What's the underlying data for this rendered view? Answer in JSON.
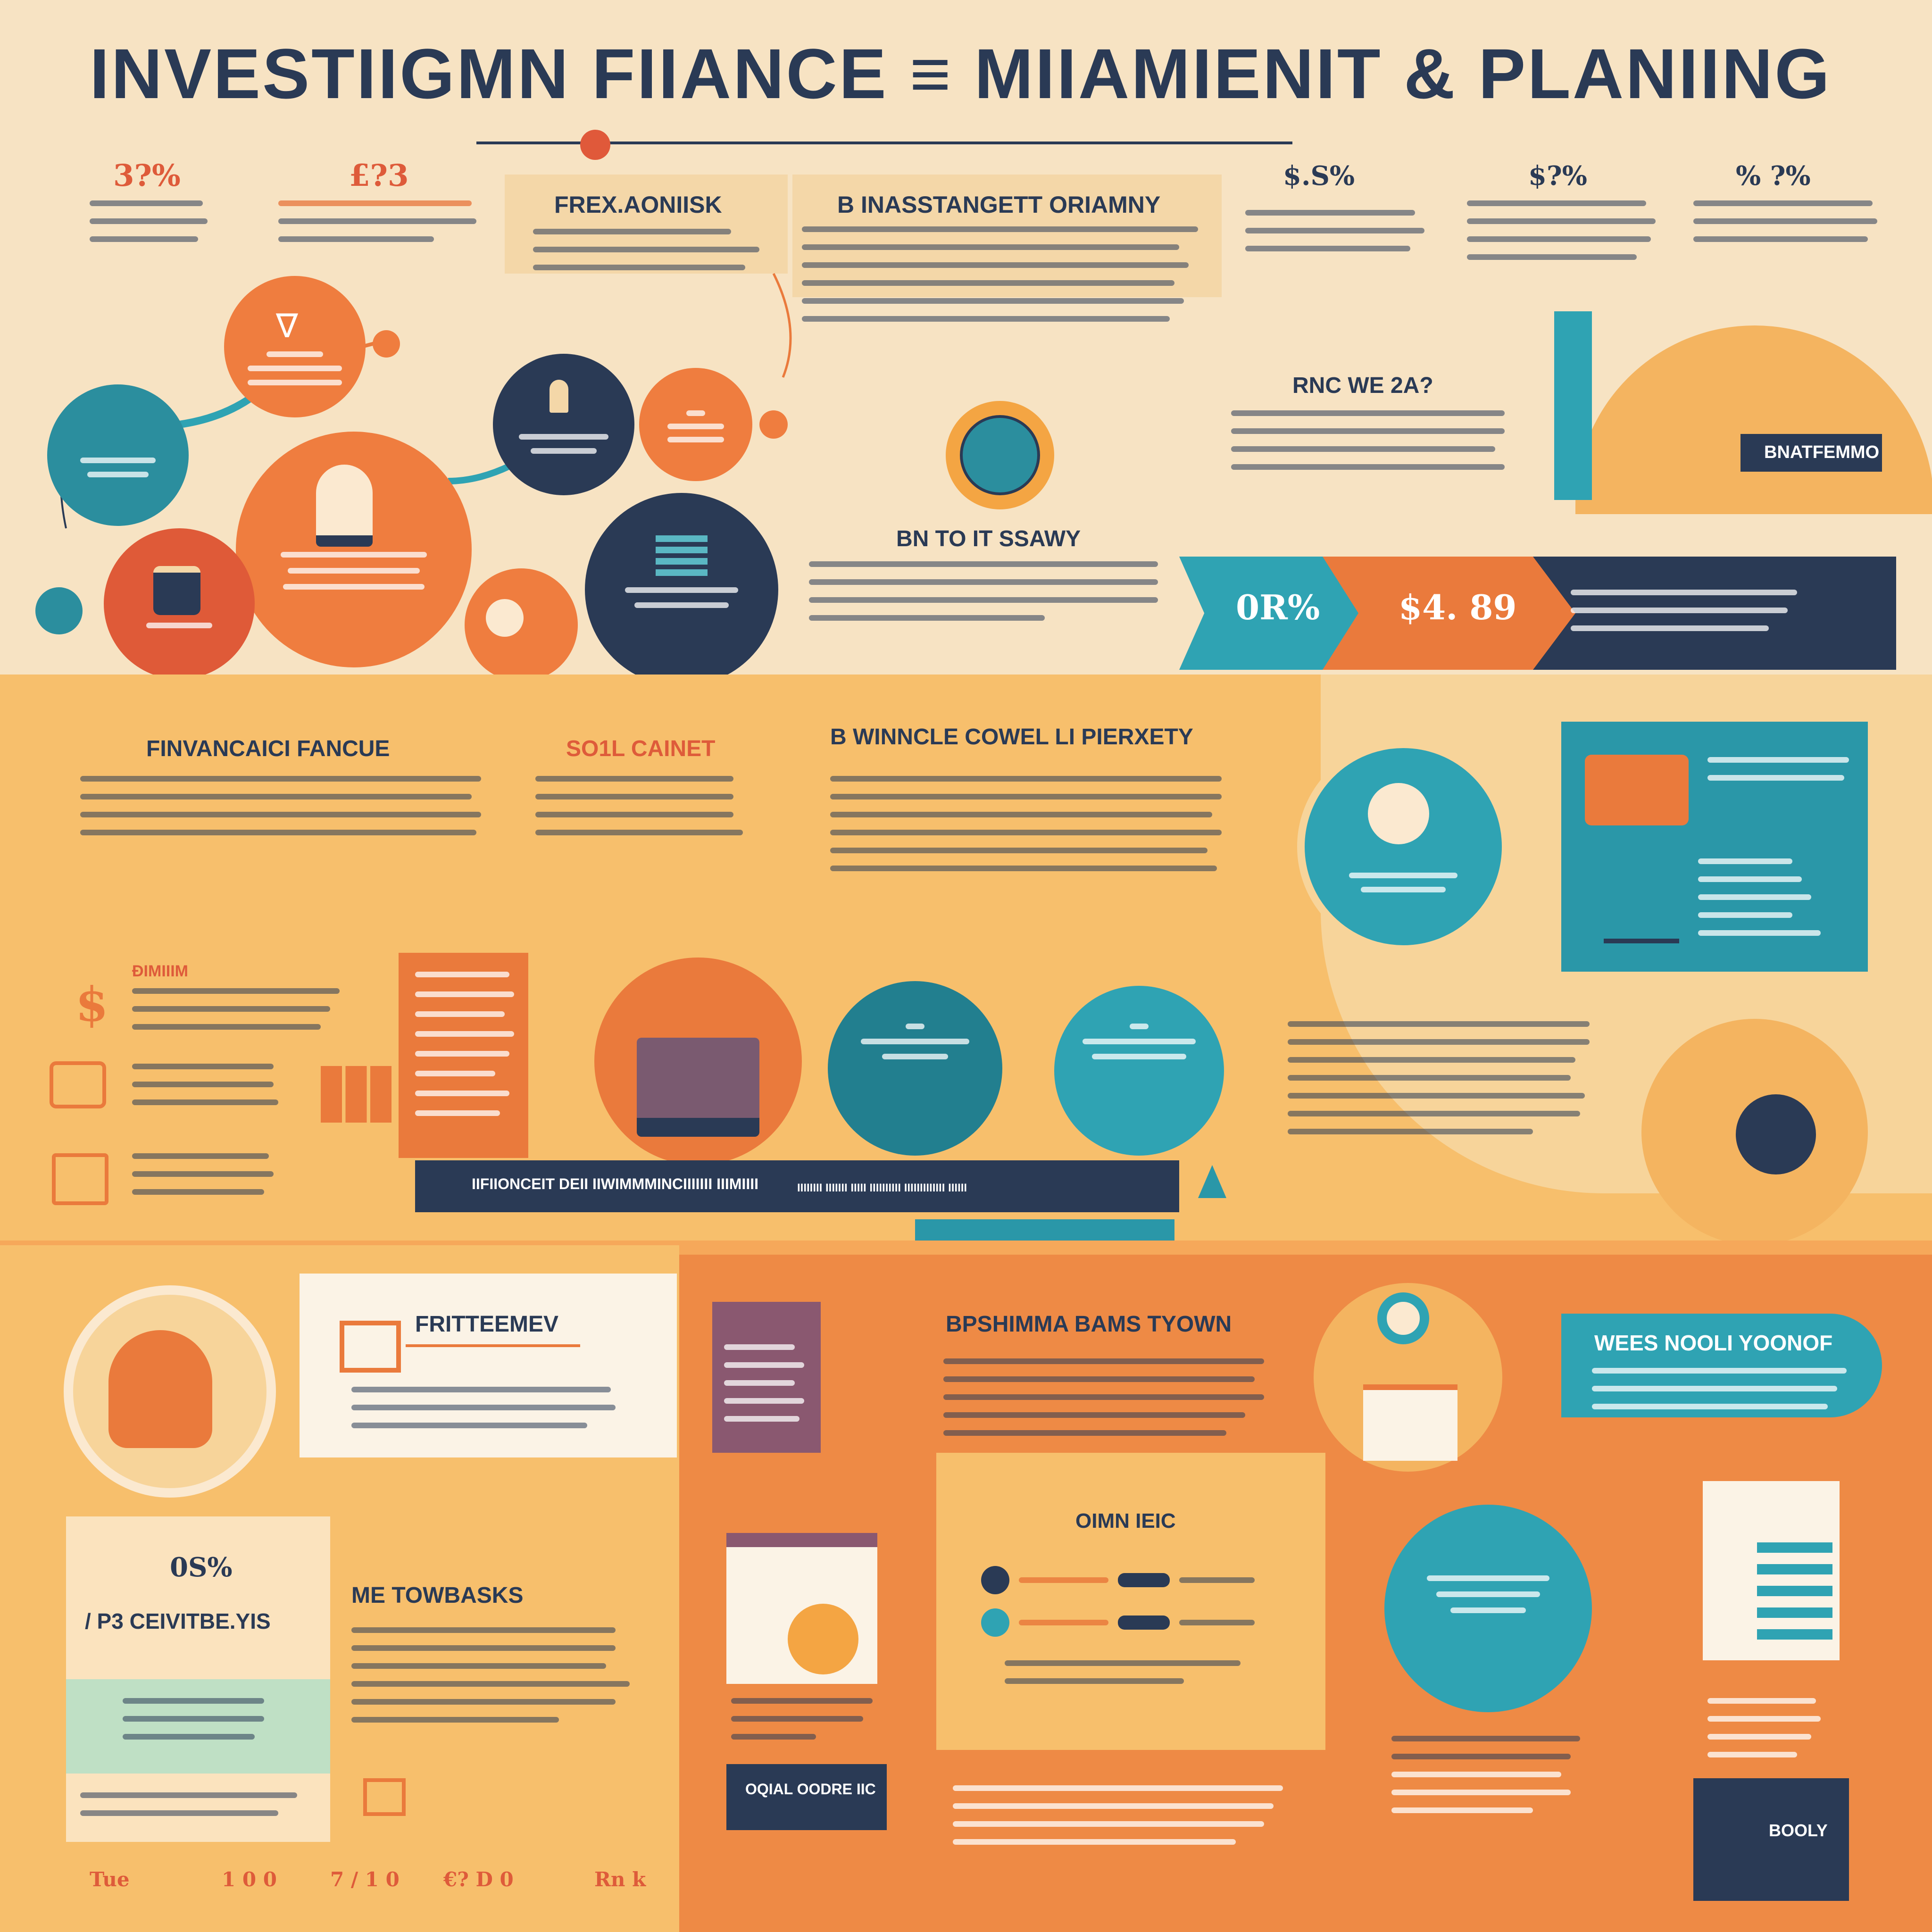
{
  "header": {
    "title": "INVESTIIGMN  FIIANCE ≡ MIIAMIENIT & PLANIING"
  },
  "stats_top": {
    "left_1": "3?%",
    "left_2": "£?3",
    "right_1": "$.S%",
    "right_2": "$?%",
    "right_3": "% ?%"
  },
  "boxes_top": {
    "box_a_title": "FREX.AONIISK",
    "box_b_title": "B INASSTANGETT ORIAMNY",
    "mid_title": "BN TO IT SSAWY",
    "right_title": "RNC WE 2A?",
    "right_tag": "BNATFEMMO"
  },
  "arrow_band": {
    "pct": "0R%",
    "amount": "$4. 89"
  },
  "middle": {
    "col1_title": "FINVANCAICI FANCUE",
    "col2_title": "SO1L CAINET",
    "col3_title": "B WINNCLE COWEL LI PIERXETY",
    "bullet_title": "ÐIMIIIM",
    "ribbon_text": "IIFIIONCEIT DEII IIWIMMMINCIIIIIII IIIMIIII",
    "ribbon_text_2": "IIIIIIII IIIIIII IIIII IIIIIIIIII IIIIIIIIIIIII IIIIII"
  },
  "bottom": {
    "card_title": "FRITTEEMEV",
    "mid_title": "BPSHIMMA BAMS TYOWN",
    "teal_title": "WEES NOOLI YOONOF",
    "small_stat": "0S%",
    "left_heading": "/ P3 CEIVITBE.YIS",
    "me_title": "ME TOWBASKS",
    "center_title": "OIMN IEIC",
    "dark_label": "OQIAL OODRE IIC",
    "footer_box": "BOOLY"
  },
  "footer_stats": [
    "Tue",
    "1 0 0",
    "7 / 1 0",
    "€? D 0",
    "Rn k"
  ],
  "colors": {
    "navy": "#2a3a55",
    "teal": "#2fa3b3",
    "orange": "#ea7a3c",
    "red": "#de5b3a",
    "cream": "#f6e3c0",
    "gold": "#f4b460"
  }
}
